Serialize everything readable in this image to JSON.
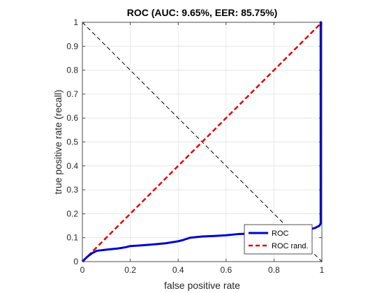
{
  "chart_data": {
    "type": "line",
    "title": "ROC (AUC: 9.65%, EER: 85.75%)",
    "xlabel": "false positive rate",
    "ylabel": "true positive rate (recall)",
    "xlim": [
      0,
      1
    ],
    "ylim": [
      0,
      1
    ],
    "xticks": [
      0,
      0.2,
      0.4,
      0.6,
      0.8,
      1
    ],
    "xtick_labels": [
      "0",
      "0.2",
      "0.4",
      "0.6",
      "0.8",
      "1"
    ],
    "yticks": [
      0,
      0.1,
      0.2,
      0.3,
      0.4,
      0.5,
      0.6,
      0.7,
      0.8,
      0.9,
      1
    ],
    "ytick_labels": [
      "0",
      "0.1",
      "0.2",
      "0.3",
      "0.4",
      "0.5",
      "0.6",
      "0.7",
      "0.8",
      "0.9",
      "1"
    ],
    "grid": true,
    "legend_position": "bottom-right",
    "series": [
      {
        "name": "ROC",
        "color": "#0000cc",
        "style": "solid",
        "x": [
          0,
          0.01,
          0.02,
          0.04,
          0.06,
          0.1,
          0.15,
          0.18,
          0.2,
          0.25,
          0.3,
          0.35,
          0.4,
          0.42,
          0.45,
          0.5,
          0.55,
          0.6,
          0.65,
          0.7,
          0.75,
          0.8,
          0.85,
          0.9,
          0.95,
          0.97,
          0.98,
          0.99,
          0.995,
          0.995,
          1
        ],
        "y": [
          0,
          0.01,
          0.02,
          0.035,
          0.045,
          0.05,
          0.055,
          0.06,
          0.065,
          0.068,
          0.072,
          0.077,
          0.085,
          0.09,
          0.1,
          0.105,
          0.107,
          0.11,
          0.115,
          0.117,
          0.12,
          0.125,
          0.128,
          0.13,
          0.135,
          0.14,
          0.145,
          0.15,
          0.16,
          1,
          1
        ]
      },
      {
        "name": "ROC rand.",
        "color": "#e00000",
        "style": "dashed",
        "x": [
          0,
          1
        ],
        "y": [
          0,
          1
        ]
      },
      {
        "name": "",
        "color": "#000000",
        "style": "dashed-thin",
        "x": [
          0,
          1
        ],
        "y": [
          1,
          0
        ]
      }
    ]
  }
}
